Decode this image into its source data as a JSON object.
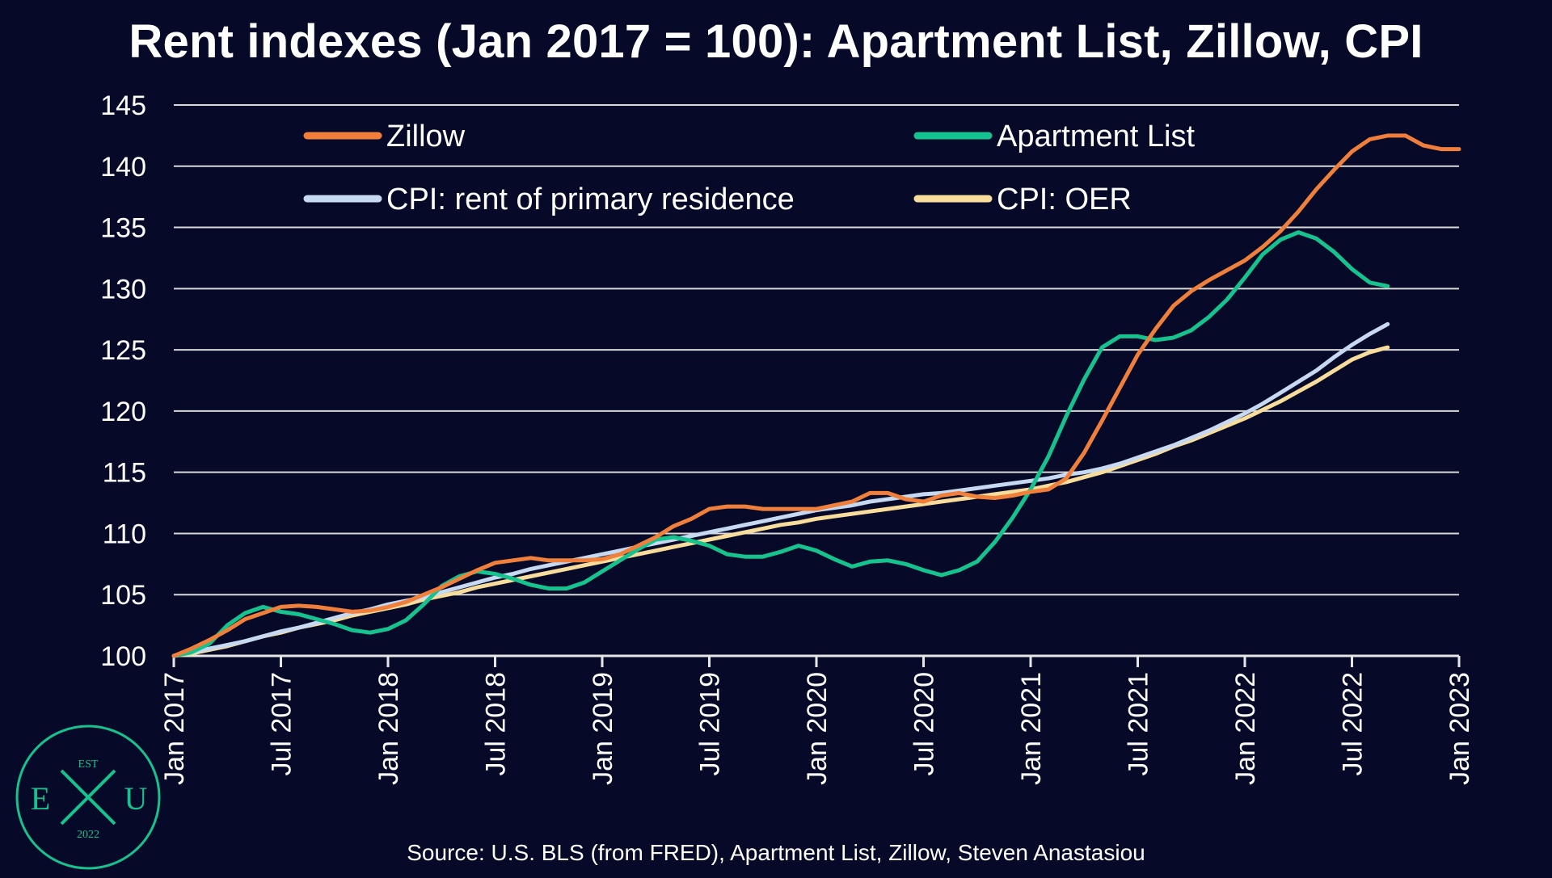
{
  "chart_data": {
    "type": "line",
    "title": "Rent indexes (Jan 2017 = 100): Apartment List, Zillow, CPI",
    "source": "Source: U.S. BLS (from FRED), Apartment List, Zillow, Steven Anastasiou",
    "ylim": [
      100,
      145
    ],
    "yticks": [
      100,
      105,
      110,
      115,
      120,
      125,
      130,
      135,
      140,
      145
    ],
    "xticks": [
      {
        "i": 0,
        "label": "Jan 2017"
      },
      {
        "i": 6,
        "label": "Jul 2017"
      },
      {
        "i": 12,
        "label": "Jan 2018"
      },
      {
        "i": 18,
        "label": "Jul 2018"
      },
      {
        "i": 24,
        "label": "Jan 2019"
      },
      {
        "i": 30,
        "label": "Jul 2019"
      },
      {
        "i": 36,
        "label": "Jan 2020"
      },
      {
        "i": 42,
        "label": "Jul 2020"
      },
      {
        "i": 48,
        "label": "Jan 2021"
      },
      {
        "i": 54,
        "label": "Jul 2021"
      },
      {
        "i": 60,
        "label": "Jan 2022"
      },
      {
        "i": 66,
        "label": "Jul 2022"
      },
      {
        "i": 72,
        "label": "Jan 2023"
      }
    ],
    "x_start": "Jan 2017",
    "x_end": "Jan 2023",
    "grid": true,
    "legend_position": "top-inside",
    "series": [
      {
        "name": "Zillow",
        "color": "#f07f3c",
        "values": [
          100,
          100.6,
          101.3,
          102.1,
          103.0,
          103.5,
          104.0,
          104.1,
          104.0,
          103.8,
          103.6,
          103.7,
          104.0,
          104.4,
          105.0,
          105.6,
          106.3,
          107.0,
          107.6,
          107.8,
          108.0,
          107.8,
          107.8,
          107.8,
          107.9,
          108.3,
          109.0,
          109.7,
          110.6,
          111.2,
          112.0,
          112.2,
          112.2,
          112.0,
          112.0,
          112.0,
          112.0,
          112.3,
          112.6,
          113.3,
          113.3,
          112.8,
          112.6,
          113.1,
          113.3,
          113.0,
          112.9,
          113.1,
          113.4,
          113.6,
          114.5,
          116.6,
          119.2,
          121.9,
          124.6,
          126.7,
          128.6,
          129.8,
          130.7,
          131.5,
          132.3,
          133.4,
          134.7,
          136.3,
          138.1,
          139.7,
          141.2,
          142.2,
          142.5,
          142.5,
          141.7,
          141.4,
          141.4
        ]
      },
      {
        "name": "Apartment List",
        "color": "#16c28d",
        "values": [
          100,
          100.3,
          101.0,
          102.5,
          103.5,
          104.0,
          103.6,
          103.4,
          103.0,
          102.6,
          102.1,
          101.9,
          102.2,
          102.9,
          104.2,
          105.7,
          106.5,
          106.9,
          106.7,
          106.3,
          105.8,
          105.5,
          105.5,
          106.0,
          106.9,
          107.8,
          108.7,
          109.5,
          109.7,
          109.4,
          109.0,
          108.3,
          108.1,
          108.1,
          108.5,
          109.0,
          108.6,
          107.9,
          107.3,
          107.7,
          107.8,
          107.5,
          107.0,
          106.6,
          107.0,
          107.7,
          109.3,
          111.3,
          113.6,
          116.3,
          119.6,
          122.6,
          125.2,
          126.1,
          126.1,
          125.8,
          126.0,
          126.6,
          127.7,
          129.1,
          130.9,
          132.8,
          134.0,
          134.6,
          134.1,
          133.0,
          131.6,
          130.5,
          130.2
        ]
      },
      {
        "name": "CPI: rent of primary residence",
        "color": "#c6d9f1",
        "values": [
          100,
          100.3,
          100.6,
          100.9,
          101.2,
          101.6,
          102.0,
          102.3,
          102.7,
          103.1,
          103.5,
          103.8,
          104.2,
          104.5,
          104.8,
          105.2,
          105.6,
          106.0,
          106.4,
          106.7,
          107.1,
          107.4,
          107.7,
          108.0,
          108.3,
          108.6,
          108.9,
          109.2,
          109.5,
          109.8,
          110.1,
          110.4,
          110.7,
          111.0,
          111.3,
          111.6,
          111.9,
          112.1,
          112.3,
          112.6,
          112.8,
          113.0,
          113.2,
          113.3,
          113.5,
          113.7,
          113.9,
          114.1,
          114.3,
          114.5,
          114.8,
          115.0,
          115.3,
          115.7,
          116.2,
          116.7,
          117.2,
          117.8,
          118.4,
          119.1,
          119.8,
          120.6,
          121.5,
          122.4,
          123.3,
          124.4,
          125.4,
          126.3,
          127.1
        ]
      },
      {
        "name": "CPI: OER",
        "color": "#f7dc9b",
        "values": [
          100,
          100.2,
          100.5,
          100.8,
          101.2,
          101.6,
          101.9,
          102.3,
          102.6,
          102.9,
          103.3,
          103.6,
          103.9,
          104.2,
          104.6,
          104.9,
          105.2,
          105.6,
          105.9,
          106.2,
          106.5,
          106.8,
          107.1,
          107.4,
          107.7,
          108.0,
          108.3,
          108.6,
          108.9,
          109.2,
          109.5,
          109.8,
          110.1,
          110.4,
          110.7,
          110.9,
          111.2,
          111.4,
          111.6,
          111.8,
          112.0,
          112.2,
          112.4,
          112.6,
          112.8,
          113.0,
          113.2,
          113.4,
          113.6,
          113.9,
          114.2,
          114.6,
          115.0,
          115.5,
          116.0,
          116.5,
          117.1,
          117.6,
          118.2,
          118.8,
          119.4,
          120.1,
          120.8,
          121.6,
          122.4,
          123.3,
          124.2,
          124.8,
          125.2
        ]
      }
    ]
  },
  "logo": {
    "top_text": "EST",
    "letters": [
      "E",
      "U"
    ],
    "year": "2022",
    "color": "#16c28d"
  }
}
